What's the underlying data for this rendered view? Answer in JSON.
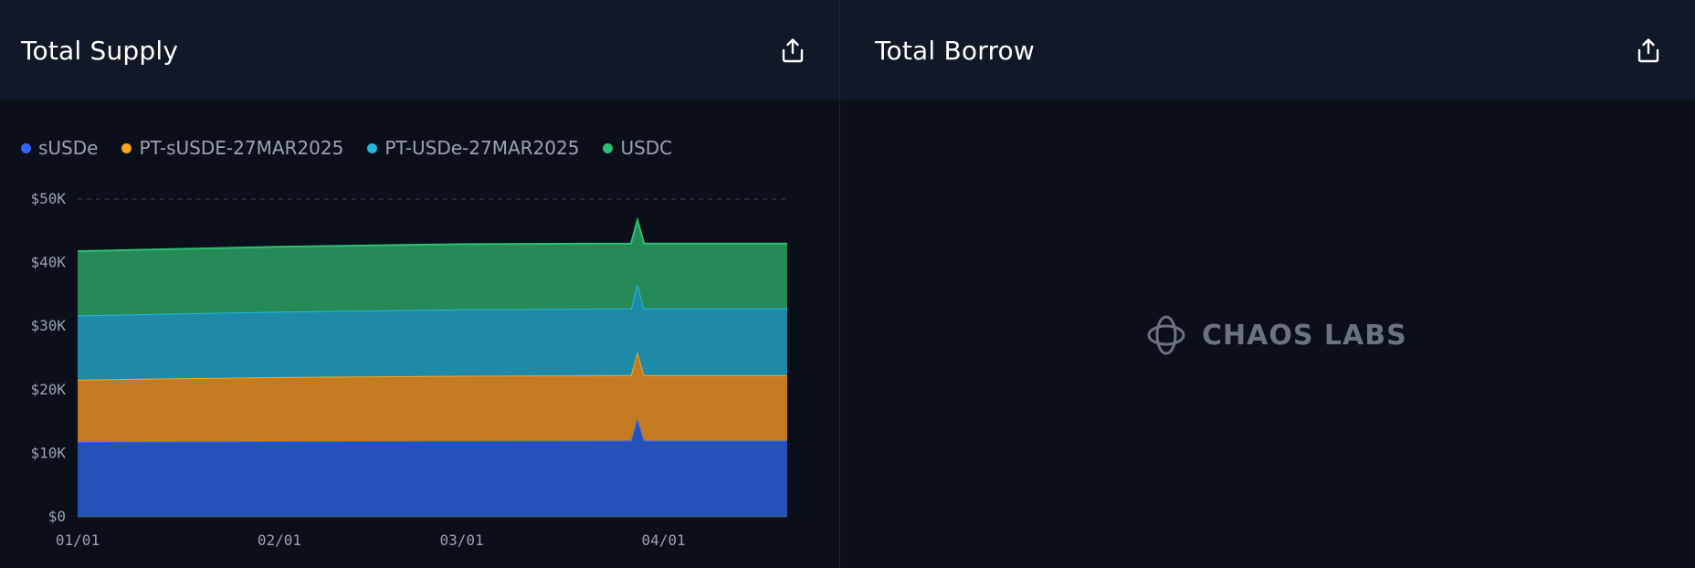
{
  "panels": {
    "supply": {
      "title": "Total Supply",
      "export_icon": "share-upload-icon"
    },
    "borrow": {
      "title": "Total Borrow",
      "export_icon": "share-upload-icon"
    }
  },
  "watermark": {
    "text": "CHAOS LABS",
    "icon": "chaos-labs-logo-icon"
  },
  "chart_data": {
    "type": "area",
    "stacked": true,
    "grid": true,
    "legend_position": "top-left",
    "x_ticks": [
      "01/01",
      "02/01",
      "03/01",
      "04/01"
    ],
    "y_ticks": [
      "$0",
      "$10K",
      "$20K",
      "$30K",
      "$40K",
      "$50K"
    ],
    "ylim": [
      0,
      50000
    ],
    "x": [
      "2025-01-01",
      "2025-02-01",
      "2025-03-01",
      "2025-03-27",
      "2025-03-28",
      "2025-03-29",
      "2025-04-01",
      "2025-04-20"
    ],
    "series": [
      {
        "name": "sUSDe",
        "color": "#3366ff",
        "fill": "#2552b8",
        "values": [
          11800,
          11900,
          11950,
          12000,
          15500,
          12000,
          12000,
          12000
        ]
      },
      {
        "name": "PT-sUSDE-27MAR2025",
        "color": "#f5a623",
        "fill": "#c47a1e",
        "values": [
          9800,
          10100,
          10250,
          10300,
          10500,
          10300,
          10300,
          10300
        ]
      },
      {
        "name": "PT-USDe-27MAR2025",
        "color": "#22b8d8",
        "fill": "#1e8aa8",
        "values": [
          10100,
          10300,
          10450,
          10500,
          10700,
          10500,
          10500,
          10500
        ]
      },
      {
        "name": "USDC",
        "color": "#2fbf71",
        "fill": "#258a58",
        "values": [
          10100,
          10200,
          10250,
          10200,
          10000,
          10200,
          10200,
          10200
        ]
      }
    ]
  }
}
